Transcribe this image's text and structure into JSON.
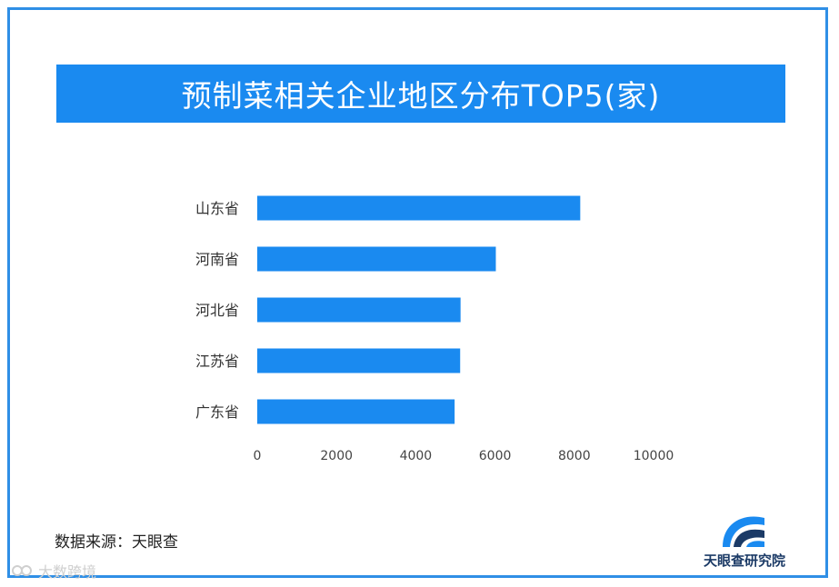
{
  "header": {
    "title": "预制菜相关企业地区分布TOP5(家)"
  },
  "chart_data": {
    "type": "bar",
    "orientation": "horizontal",
    "title": "预制菜相关企业地区分布TOP5(家)",
    "categories": [
      "山东省",
      "河南省",
      "河北省",
      "江苏省",
      "广东省"
    ],
    "values": [
      8150,
      6020,
      5130,
      5120,
      4980
    ],
    "xlim": [
      0,
      10000
    ],
    "x_ticks": [
      0,
      2000,
      4000,
      6000,
      8000,
      10000
    ],
    "bar_color": "#1a8af0",
    "grid": false
  },
  "footer": {
    "source": "数据来源：天眼查",
    "brand": "天眼查研究院",
    "watermark": "大数跨境"
  },
  "colors": {
    "accent": "#1a8af0",
    "frame": "#2f8fe6",
    "brand_text": "#1b3a66"
  }
}
